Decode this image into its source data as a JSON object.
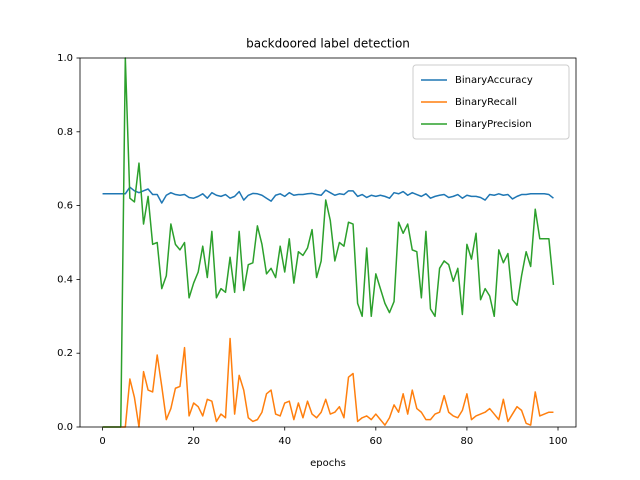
{
  "chart_data": {
    "type": "line",
    "title": "backdoored label detection",
    "xlabel": "epochs",
    "x": [
      0,
      1,
      2,
      3,
      4,
      5,
      6,
      7,
      8,
      9,
      10,
      11,
      12,
      13,
      14,
      15,
      16,
      17,
      18,
      19,
      20,
      21,
      22,
      23,
      24,
      25,
      26,
      27,
      28,
      29,
      30,
      31,
      32,
      33,
      34,
      35,
      36,
      37,
      38,
      39,
      40,
      41,
      42,
      43,
      44,
      45,
      46,
      47,
      48,
      49,
      50,
      51,
      52,
      53,
      54,
      55,
      56,
      57,
      58,
      59,
      60,
      61,
      62,
      63,
      64,
      65,
      66,
      67,
      68,
      69,
      70,
      71,
      72,
      73,
      74,
      75,
      76,
      77,
      78,
      79,
      80,
      81,
      82,
      83,
      84,
      85,
      86,
      87,
      88,
      89,
      90,
      91,
      92,
      93,
      94,
      95,
      96,
      97,
      98,
      99
    ],
    "series": [
      {
        "name": "BinaryAccuracy",
        "color": "#1f77b4",
        "values": [
          0.632,
          0.632,
          0.632,
          0.632,
          0.632,
          0.632,
          0.65,
          0.64,
          0.635,
          0.64,
          0.645,
          0.63,
          0.63,
          0.607,
          0.628,
          0.635,
          0.63,
          0.628,
          0.63,
          0.622,
          0.62,
          0.625,
          0.632,
          0.62,
          0.635,
          0.628,
          0.625,
          0.63,
          0.62,
          0.625,
          0.638,
          0.615,
          0.628,
          0.633,
          0.632,
          0.628,
          0.62,
          0.612,
          0.628,
          0.632,
          0.625,
          0.635,
          0.628,
          0.63,
          0.63,
          0.632,
          0.633,
          0.63,
          0.628,
          0.642,
          0.635,
          0.628,
          0.632,
          0.63,
          0.64,
          0.64,
          0.625,
          0.63,
          0.622,
          0.628,
          0.625,
          0.628,
          0.625,
          0.62,
          0.635,
          0.632,
          0.638,
          0.628,
          0.635,
          0.63,
          0.625,
          0.632,
          0.62,
          0.625,
          0.628,
          0.63,
          0.622,
          0.625,
          0.63,
          0.62,
          0.628,
          0.625,
          0.625,
          0.622,
          0.615,
          0.63,
          0.628,
          0.632,
          0.628,
          0.63,
          0.618,
          0.625,
          0.63,
          0.63,
          0.632,
          0.632,
          0.632,
          0.632,
          0.63,
          0.62
        ]
      },
      {
        "name": "BinaryRecall",
        "color": "#ff7f0e",
        "values": [
          0,
          0,
          0,
          0,
          0,
          0,
          0.13,
          0.08,
          0,
          0.15,
          0.1,
          0.095,
          0.195,
          0.11,
          0.02,
          0.05,
          0.105,
          0.11,
          0.215,
          0.03,
          0.065,
          0.055,
          0.03,
          0.075,
          0.07,
          0.015,
          0.035,
          0.025,
          0.24,
          0.035,
          0.14,
          0.1,
          0.025,
          0.015,
          0.02,
          0.04,
          0.09,
          0.1,
          0.035,
          0.03,
          0.065,
          0.07,
          0.02,
          0.065,
          0.025,
          0.07,
          0.035,
          0.025,
          0.04,
          0.075,
          0.035,
          0.04,
          0.055,
          0.025,
          0.135,
          0.145,
          0.015,
          0.025,
          0.03,
          0.02,
          0.035,
          0.02,
          0.005,
          0.025,
          0.06,
          0.04,
          0.09,
          0.035,
          0.1,
          0.05,
          0.04,
          0.02,
          0.02,
          0.035,
          0.04,
          0.085,
          0.04,
          0.03,
          0.025,
          0.045,
          0.09,
          0.02,
          0.03,
          0.035,
          0.04,
          0.05,
          0.035,
          0.02,
          0.075,
          0.015,
          0.035,
          0.055,
          0.045,
          0.01,
          0.005,
          0.095,
          0.03,
          0.035,
          0.04,
          0.04
        ]
      },
      {
        "name": "BinaryPrecision",
        "color": "#2ca02c",
        "values": [
          0,
          0,
          0,
          0,
          0,
          1.0,
          0.62,
          0.61,
          0.715,
          0.55,
          0.625,
          0.495,
          0.5,
          0.375,
          0.41,
          0.55,
          0.495,
          0.48,
          0.5,
          0.35,
          0.39,
          0.42,
          0.49,
          0.405,
          0.53,
          0.35,
          0.375,
          0.365,
          0.46,
          0.365,
          0.53,
          0.37,
          0.44,
          0.445,
          0.545,
          0.495,
          0.415,
          0.43,
          0.405,
          0.49,
          0.42,
          0.51,
          0.39,
          0.475,
          0.465,
          0.485,
          0.535,
          0.405,
          0.45,
          0.615,
          0.56,
          0.45,
          0.5,
          0.49,
          0.555,
          0.55,
          0.335,
          0.3,
          0.485,
          0.3,
          0.415,
          0.375,
          0.335,
          0.31,
          0.34,
          0.555,
          0.525,
          0.55,
          0.48,
          0.475,
          0.35,
          0.53,
          0.32,
          0.3,
          0.43,
          0.45,
          0.44,
          0.395,
          0.43,
          0.305,
          0.495,
          0.455,
          0.525,
          0.345,
          0.375,
          0.355,
          0.3,
          0.48,
          0.445,
          0.47,
          0.345,
          0.33,
          0.41,
          0.475,
          0.435,
          0.59,
          0.51,
          0.51,
          0.51,
          0.385
        ]
      }
    ],
    "xlim": [
      -4.95,
      103.95
    ],
    "xticks": [
      0,
      20,
      40,
      60,
      80,
      100
    ],
    "ylim": [
      0,
      1
    ],
    "yticks": [
      {
        "value": 0,
        "label": "0.0"
      },
      {
        "value": 0.2,
        "label": "0.2"
      },
      {
        "value": 0.4,
        "label": "0.4"
      },
      {
        "value": 0.6,
        "label": "0.6"
      },
      {
        "value": 0.8,
        "label": "0.8"
      },
      {
        "value": 1,
        "label": "1.0"
      }
    ],
    "grid": false,
    "legend": "upper-right"
  }
}
